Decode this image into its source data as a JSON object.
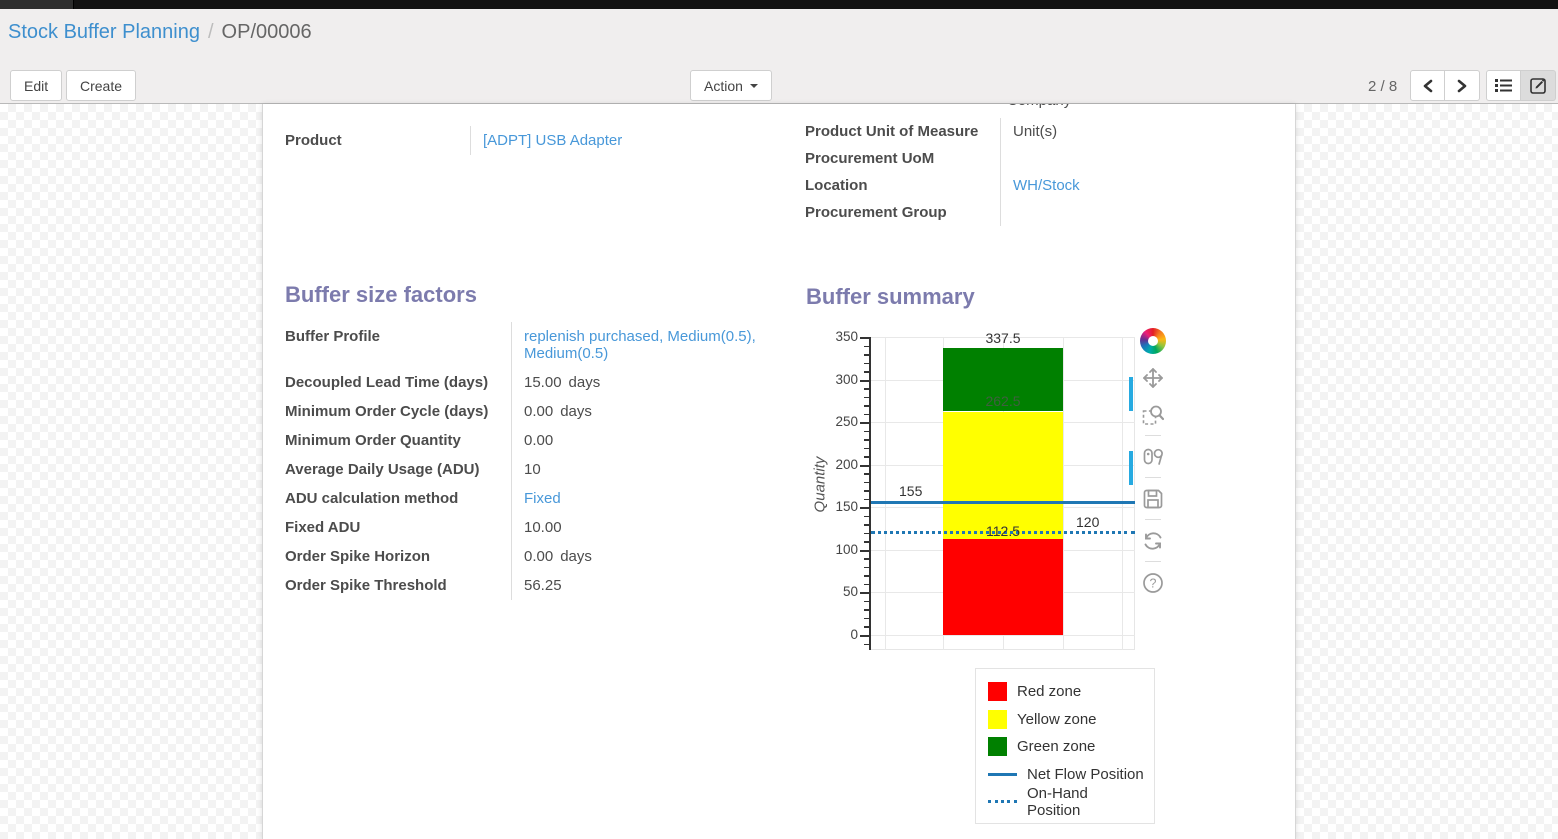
{
  "breadcrumb": {
    "parent": "Stock Buffer Planning",
    "separator": "/",
    "current": "OP/00006"
  },
  "control_panel": {
    "edit_label": "Edit",
    "create_label": "Create",
    "action_label": "Action",
    "pager_text": "2 / 8"
  },
  "form": {
    "clipped_top_text": "Company",
    "product_group": {
      "rows": [
        {
          "label": "Product",
          "value": "[ADPT] USB Adapter"
        }
      ]
    },
    "info_group": {
      "rows": [
        {
          "label": "Product Unit of Measure",
          "value": "Unit(s)"
        },
        {
          "label": "Procurement UoM",
          "value": ""
        },
        {
          "label": "Location",
          "value": "WH/Stock"
        },
        {
          "label": "Procurement Group",
          "value": ""
        }
      ]
    },
    "factors": {
      "title": "Buffer size factors",
      "rows": [
        {
          "label": "Buffer Profile",
          "value": "replenish purchased, Medium(0.5), Medium(0.5)"
        },
        {
          "label": "Decoupled Lead Time (days)",
          "value": "15.00",
          "suffix": "days"
        },
        {
          "label": "Minimum Order Cycle (days)",
          "value": "0.00",
          "suffix": "days"
        },
        {
          "label": "Minimum Order Quantity",
          "value": "0.00"
        },
        {
          "label": "Average Daily Usage (ADU)",
          "value": "10"
        },
        {
          "label": "ADU calculation method",
          "value": "Fixed"
        },
        {
          "label": "Fixed ADU",
          "value": "10.00"
        },
        {
          "label": "Order Spike Horizon",
          "value": "0.00",
          "suffix": "days"
        },
        {
          "label": "Order Spike Threshold",
          "value": "56.25"
        }
      ]
    },
    "summary_title": "Buffer summary"
  },
  "chart_data": {
    "type": "bar",
    "title": "Buffer summary",
    "ylabel": "Quantity",
    "xlabel": "",
    "ylim": [
      0,
      350
    ],
    "ytick_step": 50,
    "ytick_minor_step": 10,
    "grid": true,
    "legend_position": "bottom-right",
    "series": [
      {
        "name": "Red zone",
        "type": "bar",
        "color": "#ff0000",
        "from": 0,
        "to": 112.5
      },
      {
        "name": "Yellow zone",
        "type": "bar",
        "color": "#ffff00",
        "from": 112.5,
        "to": 262.5
      },
      {
        "name": "Green zone",
        "type": "bar",
        "color": "#008000",
        "from": 262.5,
        "to": 337.5
      },
      {
        "name": "Net Flow Position",
        "type": "line",
        "style": "solid",
        "color": "#1f77b4",
        "value": 155
      },
      {
        "name": "On-Hand Position",
        "type": "line",
        "style": "dotted",
        "color": "#1f77b4",
        "value": 120
      }
    ],
    "annotations": [
      {
        "text": "337.5",
        "x": 132,
        "y_value": 337.5,
        "dy": -18,
        "muted": false,
        "centered": true
      },
      {
        "text": "262.5",
        "x": 132,
        "y_value": 262.5,
        "dy": -19,
        "muted": true,
        "centered": true
      },
      {
        "text": "112.5",
        "x": 132,
        "y_value": 112.5,
        "dy": -16,
        "muted": false,
        "centered": true
      },
      {
        "text": "155",
        "x": 28,
        "y_value": 155,
        "dy": -20,
        "muted": false,
        "centered": false
      },
      {
        "text": "120",
        "x": 205,
        "y_value": 120,
        "dy": -19,
        "muted": false,
        "centered": false
      }
    ],
    "legend": [
      "Red zone",
      "Yellow zone",
      "Green zone",
      "Net Flow Position",
      "On-Hand Position"
    ]
  },
  "chart_toolbar": {
    "tools": [
      "bokeh-logo",
      "pan",
      "box-zoom",
      "hover",
      "save",
      "reset",
      "help"
    ],
    "active_tools": [
      "pan",
      "hover"
    ]
  },
  "colors": {
    "breadcrumb_link": "#3e8fce",
    "value_link": "#4898d9",
    "section_title": "#7c7bad",
    "red_zone": "#ff0000",
    "yellow_zone": "#ffff00",
    "green_zone": "#008000",
    "flow_line": "#1f77b4",
    "active_tool_indicator": "#26aae1"
  }
}
